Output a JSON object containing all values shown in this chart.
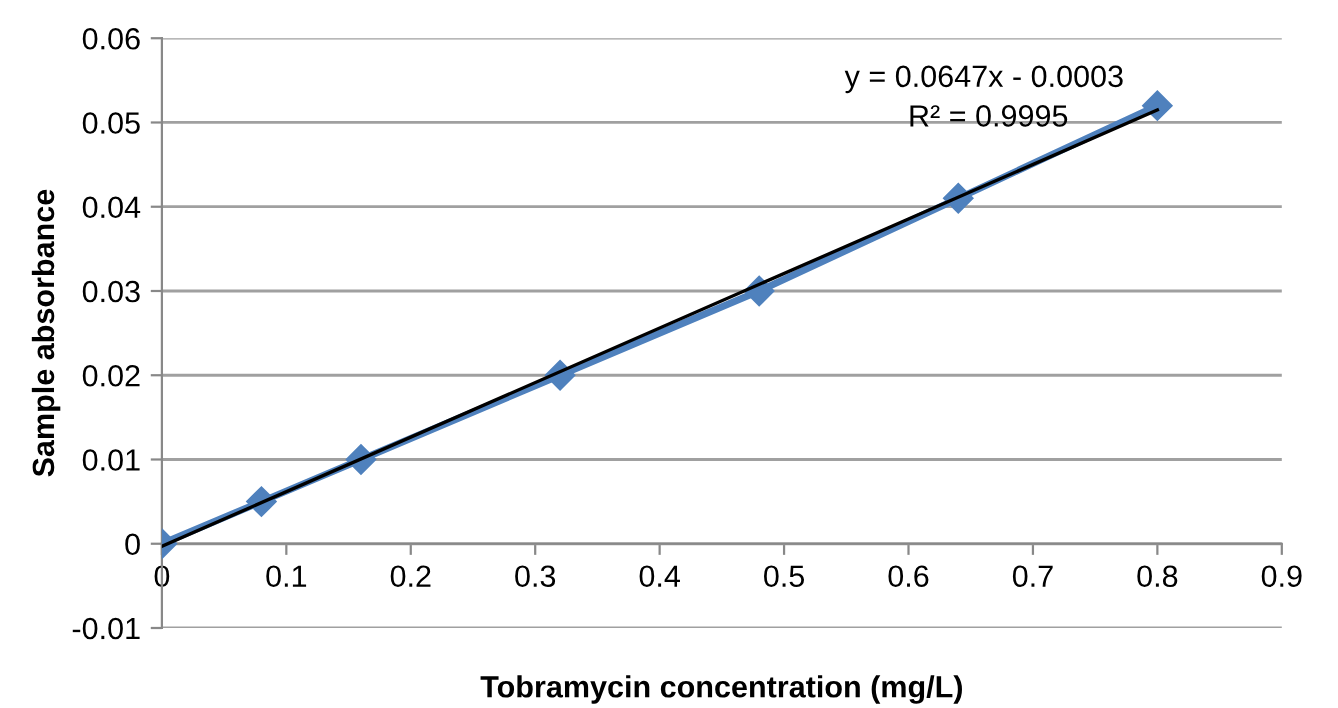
{
  "chart_data": {
    "type": "line",
    "xlabel": "Tobramycin concentration (mg/L)",
    "ylabel": "Sample absorbance",
    "series": [
      {
        "color": "#4f81bd",
        "marker": "diamond",
        "x": [
          0,
          0.08,
          0.16,
          0.32,
          0.48,
          0.64,
          0.8
        ],
        "values": [
          0,
          0.005,
          0.01,
          0.02,
          0.03,
          0.041,
          0.052
        ]
      },
      {
        "color": "#000000",
        "marker": "none",
        "x": [
          0,
          0.8
        ],
        "values": [
          -0.0003,
          0.0515
        ]
      }
    ],
    "xlim": [
      0,
      0.9
    ],
    "xticks": [
      0,
      0.1,
      0.2,
      0.3,
      0.4,
      0.5,
      0.6,
      0.7,
      0.8,
      0.9
    ],
    "ylim": [
      -0.01,
      0.06
    ],
    "yticks": [
      -0.01,
      0,
      0.01,
      0.02,
      0.03,
      0.04,
      0.05,
      0.06
    ],
    "grid": "y",
    "legend": false,
    "annotations": [
      {
        "text": "y = 0.0647x - 0.0003",
        "x": 0.8,
        "y": 0.0515
      },
      {
        "text": "R² = 0.9995",
        "x": 0.8,
        "y": 0.0515
      }
    ]
  }
}
